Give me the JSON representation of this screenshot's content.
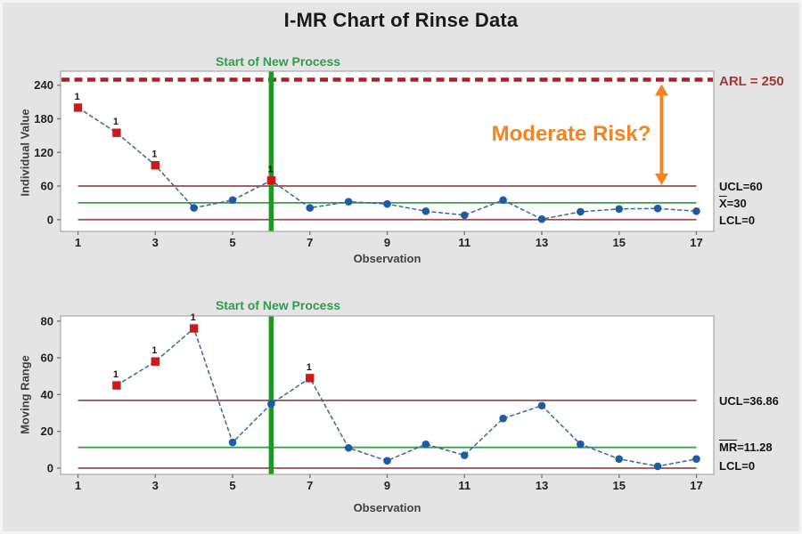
{
  "title": "I-MR Chart of Rinse Data",
  "annotations": {
    "arl_label": "ARL = 250",
    "moderate_risk_label": "Moderate Risk?",
    "start_of_new_process_label": "Start of New Process"
  },
  "chart_data": [
    {
      "type": "line",
      "name": "individuals-chart",
      "ylabel": "Individual Value",
      "xlabel": "Observation",
      "x": [
        1,
        2,
        3,
        4,
        5,
        6,
        7,
        8,
        9,
        10,
        11,
        12,
        13,
        14,
        15,
        16,
        17
      ],
      "values": [
        200,
        155,
        97,
        21,
        35,
        70,
        21,
        32,
        28,
        15,
        8,
        35,
        1,
        14,
        19,
        20,
        15
      ],
      "out_of_control_x": [
        1,
        2,
        3,
        6
      ],
      "flag_label": "1",
      "center_value": 30,
      "ucl_value": 60,
      "lcl_value": 0,
      "arl_value": 250,
      "vline_x": 6,
      "arrow_x": 16.1,
      "x_ticks": [
        1,
        3,
        5,
        7,
        9,
        11,
        13,
        15,
        17
      ],
      "y_ticks": [
        0,
        60,
        120,
        180,
        240
      ],
      "xlim": [
        0.55,
        17.45
      ],
      "ylim": [
        -21,
        265
      ],
      "grid": false,
      "legend_position": "right",
      "limit_labels": [
        {
          "bar": "",
          "rest": "UCL=60",
          "value": 60
        },
        {
          "bar": "X",
          "rest": "=30",
          "value": 30
        },
        {
          "bar": "",
          "rest": "LCL=0",
          "value": 0
        }
      ]
    },
    {
      "type": "line",
      "name": "moving-range-chart",
      "ylabel": "Moving Range",
      "xlabel": "Observation",
      "x": [
        1,
        2,
        3,
        4,
        5,
        6,
        7,
        8,
        9,
        10,
        11,
        12,
        13,
        14,
        15,
        16,
        17
      ],
      "values": [
        null,
        45,
        58,
        76,
        14,
        35,
        49,
        11,
        4,
        13,
        7,
        27,
        34,
        13,
        5,
        1,
        5
      ],
      "out_of_control_x": [
        2,
        3,
        4,
        7
      ],
      "flag_label": "1",
      "center_value": 11.28,
      "ucl_value": 36.86,
      "lcl_value": 0,
      "arl_value": null,
      "vline_x": 6,
      "x_ticks": [
        1,
        3,
        5,
        7,
        9,
        11,
        13,
        15,
        17
      ],
      "y_ticks": [
        0,
        20,
        40,
        60,
        80
      ],
      "xlim": [
        0.55,
        17.45
      ],
      "ylim": [
        -3.4,
        82.8
      ],
      "grid": false,
      "legend_position": "right",
      "limit_labels": [
        {
          "bar": "",
          "rest": "UCL=36.86",
          "value": 36.86
        },
        {
          "bar": "MR",
          "rest": "=11.28",
          "value": 11.28
        },
        {
          "bar": "",
          "rest": "LCL=0",
          "value": 0
        }
      ]
    }
  ],
  "colors": {
    "background": "#e4e4e4",
    "plot_background": "#ffffff",
    "plot_border": "#a8a8a8",
    "tick": "#7a7a7a",
    "tick_label": "#222222",
    "data_line": "#3a6792",
    "point_fill": "#1d5ba6",
    "out_of_control": "#cc1a1a",
    "flag_text": "#1a1a1a",
    "limit_line": "#9c4a4a",
    "center_line": "#3aa04a",
    "vline": "#1f9727",
    "arl_line": "#b41e1e",
    "arl_text": "#a03636",
    "risk_orange": "#f5831f",
    "process_label_green": "#2f9e4a"
  }
}
